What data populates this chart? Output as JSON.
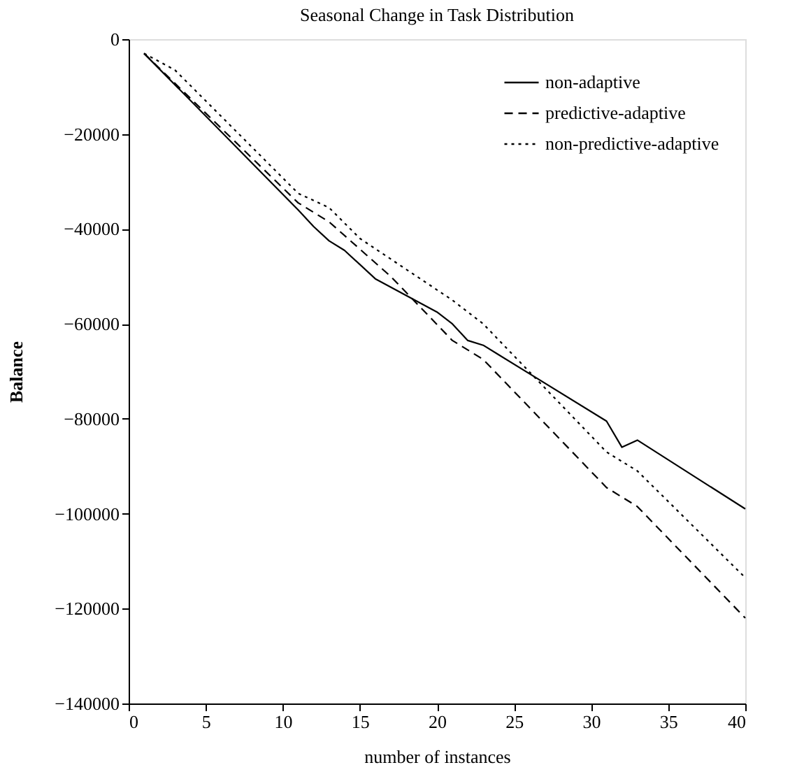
{
  "chart_data": {
    "type": "line",
    "title": "Seasonal Change in Task Distribution",
    "xlabel": "number of instances",
    "ylabel": "Balance",
    "series": [
      {
        "name": "non-adaptive",
        "color": "#000000",
        "line_style": "solid",
        "x": [
          1,
          11,
          12,
          13,
          14,
          16,
          18,
          20,
          21,
          22,
          23,
          24,
          31,
          32,
          33,
          40
        ],
        "values": [
          -3000,
          -36000,
          -39500,
          -42500,
          -44500,
          -50500,
          -54000,
          -57500,
          -60000,
          -63500,
          -64500,
          -66500,
          -80500,
          -86000,
          -84500,
          -99000
        ]
      },
      {
        "name": "predictive-adaptive",
        "color": "#000000",
        "line_style": "dashed",
        "x": [
          1,
          11,
          13,
          17,
          21,
          23,
          31,
          33,
          40
        ],
        "values": [
          -3000,
          -34500,
          -38500,
          -50000,
          -63500,
          -67500,
          -94500,
          -98500,
          -122000
        ]
      },
      {
        "name": "non-predictive-adaptive",
        "color": "#000000",
        "line_style": "dotted",
        "x": [
          1,
          3,
          11,
          13,
          15,
          21,
          23,
          31,
          33,
          40
        ],
        "values": [
          -3000,
          -6500,
          -32500,
          -35500,
          -42000,
          -55000,
          -60000,
          -87000,
          -91000,
          -113500
        ]
      }
    ],
    "xlim": [
      0,
      40
    ],
    "xticks": [
      0,
      5,
      10,
      15,
      20,
      25,
      30,
      35,
      40
    ],
    "ylim": [
      -140000,
      0
    ],
    "yticks": [
      0,
      -20000,
      -40000,
      -60000,
      -80000,
      -100000,
      -120000,
      -140000
    ],
    "grid": false,
    "legend": "top right",
    "marker": "none"
  }
}
